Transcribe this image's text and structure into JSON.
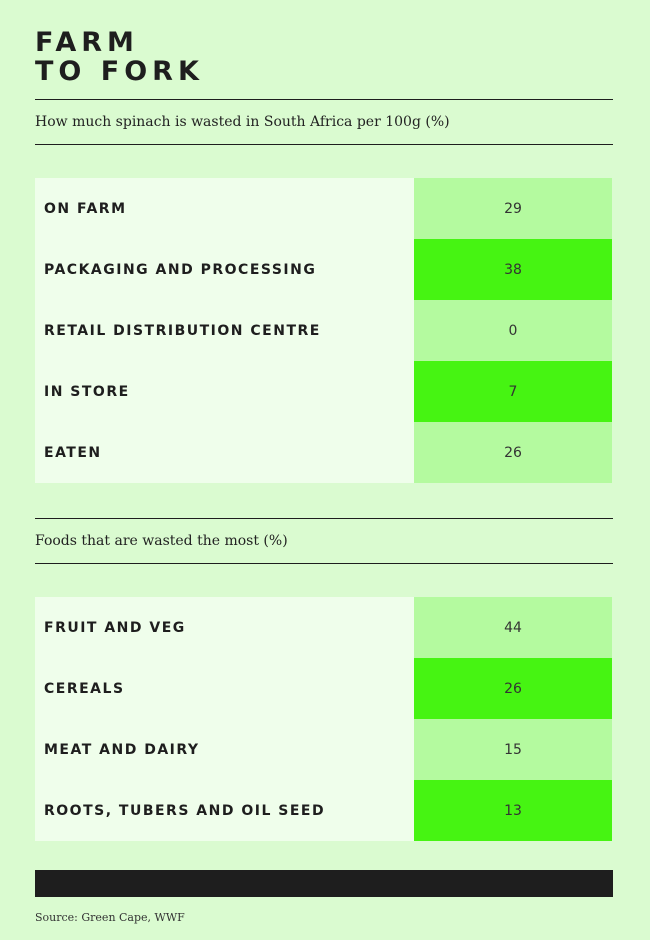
{
  "title": [
    "FARM",
    "TO FORK"
  ],
  "sections": [
    {
      "subtitle": "How much spinach is wasted in South Africa per 100g (%)",
      "rows": [
        [
          "ON FARM",
          29
        ],
        [
          "PACKAGING AND PROCESSING",
          38
        ],
        [
          "RETAIL DISTRIBUTION CENTRE",
          0
        ],
        [
          "IN STORE",
          7
        ],
        [
          "EATEN",
          26
        ]
      ]
    },
    {
      "subtitle": "Foods that are wasted the most (%)",
      "rows": [
        [
          "FRUIT AND VEG",
          44
        ],
        [
          "CEREALS",
          26
        ],
        [
          "MEAT AND DAIRY",
          15
        ],
        [
          "ROOTS, TUBERS AND OIL SEED",
          13
        ]
      ]
    }
  ],
  "source": "Source: Green Cape, WWF"
}
